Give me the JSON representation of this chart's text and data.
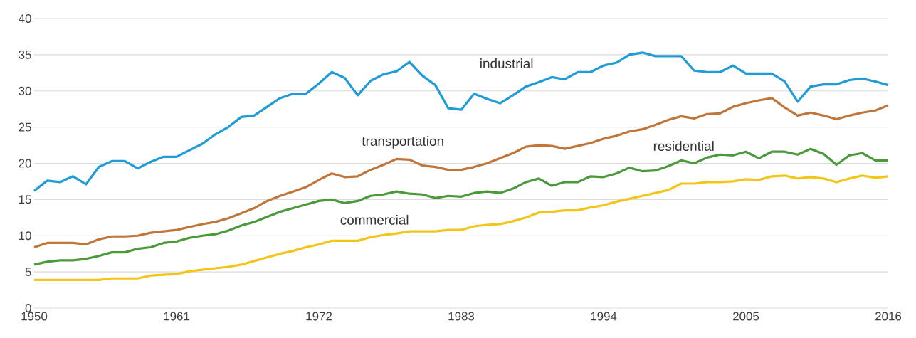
{
  "chart_data": {
    "type": "line",
    "x": [
      1950,
      1951,
      1952,
      1953,
      1954,
      1955,
      1956,
      1957,
      1958,
      1959,
      1960,
      1961,
      1962,
      1963,
      1964,
      1965,
      1966,
      1967,
      1968,
      1969,
      1970,
      1971,
      1972,
      1973,
      1974,
      1975,
      1976,
      1977,
      1978,
      1979,
      1980,
      1981,
      1982,
      1983,
      1984,
      1985,
      1986,
      1987,
      1988,
      1989,
      1990,
      1991,
      1992,
      1993,
      1994,
      1995,
      1996,
      1997,
      1998,
      1999,
      2000,
      2001,
      2002,
      2003,
      2004,
      2005,
      2006,
      2007,
      2008,
      2009,
      2010,
      2011,
      2012,
      2013,
      2014,
      2015,
      2016
    ],
    "xlim": [
      1950,
      2016
    ],
    "xticks": [
      1950,
      1961,
      1972,
      1983,
      1994,
      2005,
      2016
    ],
    "ylim": [
      0,
      40
    ],
    "yticks": [
      0,
      5,
      10,
      15,
      20,
      25,
      30,
      35,
      40
    ],
    "grid": "y",
    "legend": false,
    "marker": "none",
    "line_style": "solid",
    "series": [
      {
        "name": "industrial",
        "color": "#1f9bd7",
        "values": [
          16.2,
          17.6,
          17.4,
          18.2,
          17.1,
          19.5,
          20.3,
          20.3,
          19.3,
          20.2,
          20.9,
          20.9,
          21.8,
          22.7,
          24.0,
          25.0,
          26.4,
          26.6,
          27.8,
          29.0,
          29.6,
          29.6,
          31.0,
          32.6,
          31.8,
          29.4,
          31.4,
          32.3,
          32.7,
          34.0,
          32.1,
          30.8,
          27.6,
          27.4,
          29.6,
          28.9,
          28.3,
          29.4,
          30.6,
          31.2,
          31.9,
          31.6,
          32.6,
          32.6,
          33.5,
          33.9,
          35.0,
          35.3,
          34.8,
          34.8,
          34.8,
          32.8,
          32.6,
          32.6,
          33.5,
          32.4,
          32.4,
          32.4,
          31.3,
          28.5,
          30.6,
          30.9,
          30.9,
          31.5,
          31.7,
          31.3,
          30.8
        ]
      },
      {
        "name": "transportation",
        "color": "#c0763a",
        "values": [
          8.4,
          9.0,
          9.0,
          9.0,
          8.8,
          9.5,
          9.9,
          9.9,
          10.0,
          10.4,
          10.6,
          10.8,
          11.2,
          11.6,
          11.9,
          12.4,
          13.1,
          13.8,
          14.8,
          15.5,
          16.1,
          16.7,
          17.7,
          18.6,
          18.1,
          18.2,
          19.1,
          19.8,
          20.6,
          20.5,
          19.7,
          19.5,
          19.1,
          19.1,
          19.5,
          20.0,
          20.7,
          21.4,
          22.3,
          22.5,
          22.4,
          22.0,
          22.4,
          22.8,
          23.4,
          23.8,
          24.4,
          24.7,
          25.3,
          26.0,
          26.5,
          26.2,
          26.8,
          26.9,
          27.8,
          28.3,
          28.7,
          29.0,
          27.7,
          26.6,
          27.0,
          26.6,
          26.1,
          26.6,
          27.0,
          27.3,
          28.0
        ]
      },
      {
        "name": "residential",
        "color": "#4a9a3a",
        "values": [
          6.0,
          6.4,
          6.6,
          6.6,
          6.8,
          7.2,
          7.7,
          7.7,
          8.2,
          8.4,
          9.0,
          9.2,
          9.7,
          10.0,
          10.2,
          10.7,
          11.4,
          11.9,
          12.6,
          13.3,
          13.8,
          14.3,
          14.8,
          15.0,
          14.5,
          14.8,
          15.5,
          15.7,
          16.1,
          15.8,
          15.7,
          15.2,
          15.5,
          15.4,
          15.9,
          16.1,
          15.9,
          16.5,
          17.4,
          17.9,
          16.9,
          17.4,
          17.4,
          18.2,
          18.1,
          18.6,
          19.4,
          18.9,
          19.0,
          19.6,
          20.4,
          20.0,
          20.8,
          21.2,
          21.1,
          21.6,
          20.7,
          21.6,
          21.6,
          21.2,
          22.0,
          21.3,
          19.8,
          21.1,
          21.4,
          20.4,
          20.4
        ]
      },
      {
        "name": "commercial",
        "color": "#f2c518",
        "values": [
          3.9,
          3.9,
          3.9,
          3.9,
          3.9,
          3.9,
          4.1,
          4.1,
          4.1,
          4.5,
          4.6,
          4.7,
          5.1,
          5.3,
          5.5,
          5.7,
          6.0,
          6.5,
          7.0,
          7.5,
          7.9,
          8.4,
          8.8,
          9.3,
          9.3,
          9.3,
          9.8,
          10.1,
          10.3,
          10.6,
          10.6,
          10.6,
          10.8,
          10.8,
          11.3,
          11.5,
          11.6,
          12.0,
          12.5,
          13.2,
          13.3,
          13.5,
          13.5,
          13.9,
          14.2,
          14.7,
          15.1,
          15.5,
          15.9,
          16.3,
          17.2,
          17.2,
          17.4,
          17.4,
          17.5,
          17.8,
          17.7,
          18.2,
          18.3,
          17.9,
          18.1,
          17.9,
          17.4,
          17.9,
          18.3,
          18.0,
          18.2
        ]
      }
    ]
  }
}
